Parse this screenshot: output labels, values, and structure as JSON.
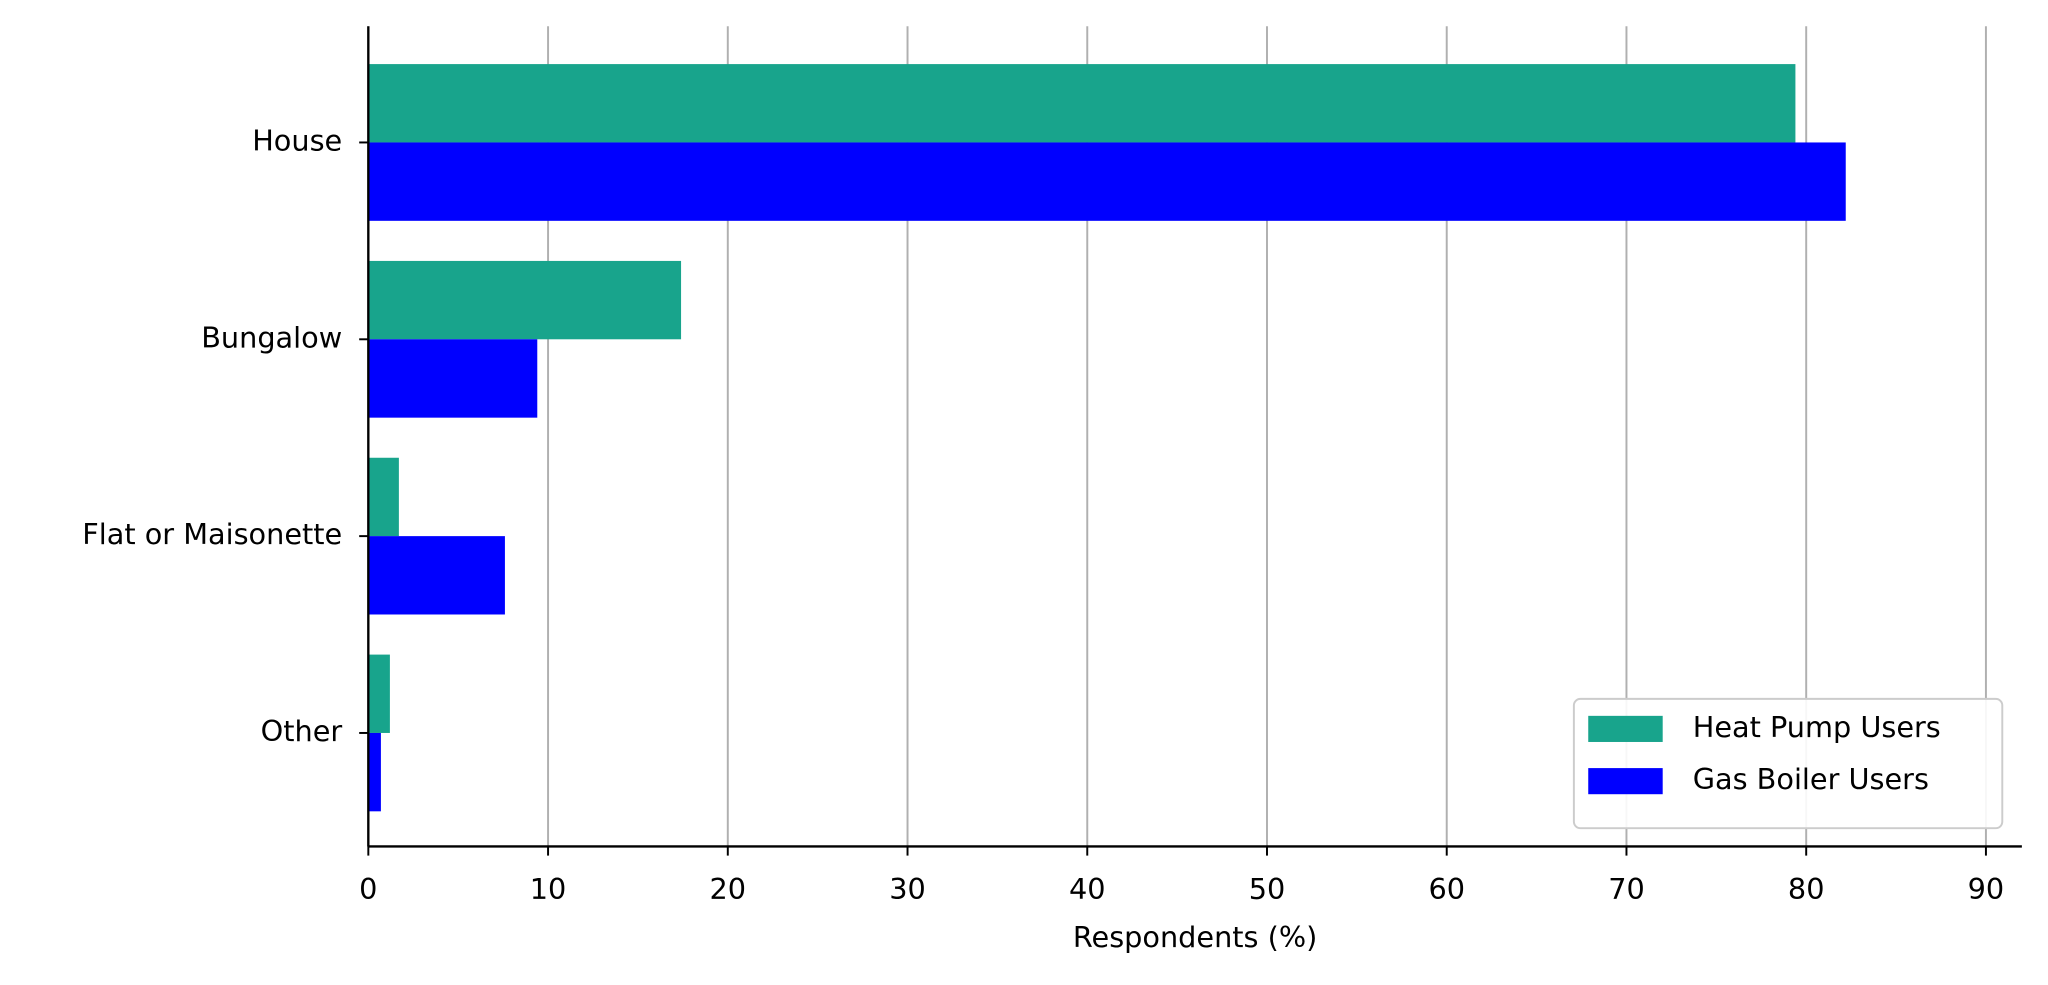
{
  "chart_data": {
    "type": "barh",
    "categories": [
      "House",
      "Bungalow",
      "Flat or Maisonette",
      "Other"
    ],
    "series": [
      {
        "name": "Heat Pump Users",
        "color": "#18a48c",
        "values": [
          79.4,
          17.4,
          1.7,
          1.2
        ]
      },
      {
        "name": "Gas Boiler Users",
        "color": "#0000ff",
        "values": [
          82.2,
          9.4,
          7.6,
          0.7
        ]
      }
    ],
    "x_label": "Respondents (%)",
    "xlim": [
      0,
      92
    ],
    "xticks": [
      0,
      10,
      20,
      30,
      40,
      50,
      60,
      70,
      80,
      90
    ],
    "grid": true,
    "legend": "lower right"
  }
}
